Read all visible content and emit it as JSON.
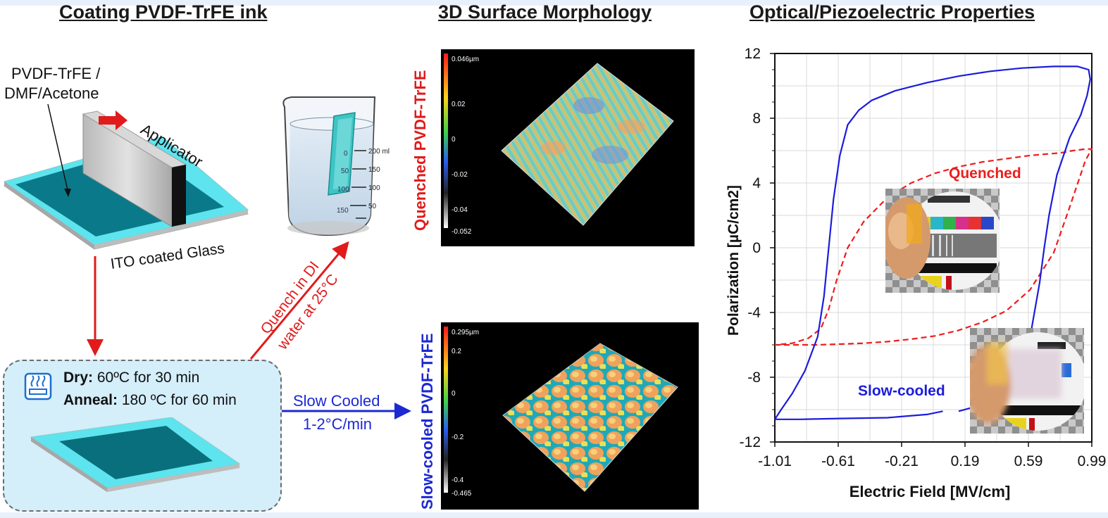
{
  "titles": {
    "coating": "Coating PVDF-TrFE ink",
    "morphology": "3D Surface Morphology",
    "properties": "Optical/Piezoelectric Properties"
  },
  "coating": {
    "ink_line1": "PVDF-TrFE /",
    "ink_line2": "DMF/Acetone",
    "applicator": "Applicator",
    "substrate": "ITO coated Glass",
    "quench_line1": "Quench in DI",
    "quench_line2": "water at 25°C",
    "beaker_marks": [
      "200 ml",
      "150",
      "100",
      "50"
    ],
    "beaker_marks_left": [
      "0",
      "50",
      "100",
      "150"
    ],
    "dry_label": "Dry:",
    "dry_text": " 60ºC for 30 min",
    "anneal_label": "Anneal:",
    "anneal_text": " 180 ºC for 60 min",
    "slow_line1": "Slow Cooled",
    "slow_line2": "1-2°C/min",
    "icon": "heater-icon"
  },
  "morphology": {
    "quenched_label": "Quenched PVDF-TrFE",
    "slow_label": "Slow-cooled PVDF-TrFE",
    "quenched_scale": [
      "0.046µm",
      "0.02",
      "0",
      "-0.02",
      "-0.04",
      "-0.052"
    ],
    "slow_scale": [
      "0.295µm",
      "0.2",
      "0",
      "-0.2",
      "-0.4",
      "-0.465"
    ]
  },
  "chart_data": {
    "type": "line",
    "title": "",
    "xlabel": "Electric Field [MV/cm]",
    "ylabel": "Polarization [µC/cm2]",
    "xlim": [
      -1.01,
      0.99
    ],
    "ylim": [
      -12,
      12
    ],
    "x_ticks": [
      "-1.01",
      "-0.61",
      "-0.21",
      "0.19",
      "0.59",
      "0.99"
    ],
    "y_ticks": [
      "12",
      "8",
      "4",
      "0",
      "-4",
      "-8",
      "-12"
    ],
    "grid": true,
    "series": [
      {
        "name": "Quenched",
        "style": "dashed",
        "color": "#ee1c1c",
        "x": [
          -1.01,
          -0.9,
          -0.75,
          -0.6,
          -0.45,
          -0.3,
          -0.15,
          0.0,
          0.15,
          0.3,
          0.45,
          0.6,
          0.75,
          0.85,
          0.95,
          0.99,
          0.95,
          0.87,
          0.82,
          0.78,
          0.72,
          0.6,
          0.45,
          0.3,
          0.15,
          0.0,
          -0.15,
          -0.3,
          -0.45,
          -0.55,
          -0.62,
          -0.67,
          -0.72,
          -0.8,
          -0.9,
          -1.01
        ],
        "y": [
          -6.0,
          -6.0,
          -6.0,
          -5.95,
          -5.9,
          -5.8,
          -5.65,
          -5.45,
          -5.1,
          -4.6,
          -3.9,
          -2.6,
          -0.3,
          2.5,
          5.4,
          6.1,
          6.1,
          6.0,
          5.9,
          5.85,
          5.8,
          5.7,
          5.5,
          5.3,
          5.0,
          4.6,
          4.0,
          3.1,
          1.6,
          0.0,
          -2.0,
          -3.8,
          -5.0,
          -5.6,
          -5.9,
          -6.0
        ]
      },
      {
        "name": "Slow-cooled",
        "style": "solid",
        "color": "#1c1cdc",
        "x": [
          -1.01,
          -0.97,
          -0.9,
          -0.82,
          -0.74,
          -0.7,
          -0.67,
          -0.64,
          -0.6,
          -0.55,
          -0.48,
          -0.4,
          -0.25,
          -0.05,
          0.15,
          0.35,
          0.55,
          0.75,
          0.9,
          0.97,
          0.98,
          0.96,
          0.92,
          0.85,
          0.77,
          0.72,
          0.69,
          0.66,
          0.61,
          0.55,
          0.45,
          0.3,
          0.15
        ],
        "y": [
          -10.6,
          -10.0,
          -9.0,
          -7.6,
          -5.5,
          -3.0,
          0.0,
          3.0,
          5.7,
          7.6,
          8.5,
          9.1,
          9.7,
          10.2,
          10.6,
          10.9,
          11.1,
          11.2,
          11.2,
          11.0,
          10.4,
          9.4,
          8.2,
          6.8,
          4.5,
          2.0,
          0.0,
          -2.2,
          -5.0,
          -7.5,
          -8.9,
          -9.7,
          -10.1
        ]
      },
      {
        "name": "",
        "style": "solid",
        "color": "#1c1cdc",
        "x": [
          -1.01,
          -0.85,
          -0.6,
          -0.3,
          -0.05,
          0.05
        ],
        "y": [
          -10.6,
          -10.6,
          -10.55,
          -10.5,
          -10.3,
          -10.1
        ]
      }
    ],
    "annotations": [
      "Quenched",
      "Slow-cooled"
    ]
  }
}
